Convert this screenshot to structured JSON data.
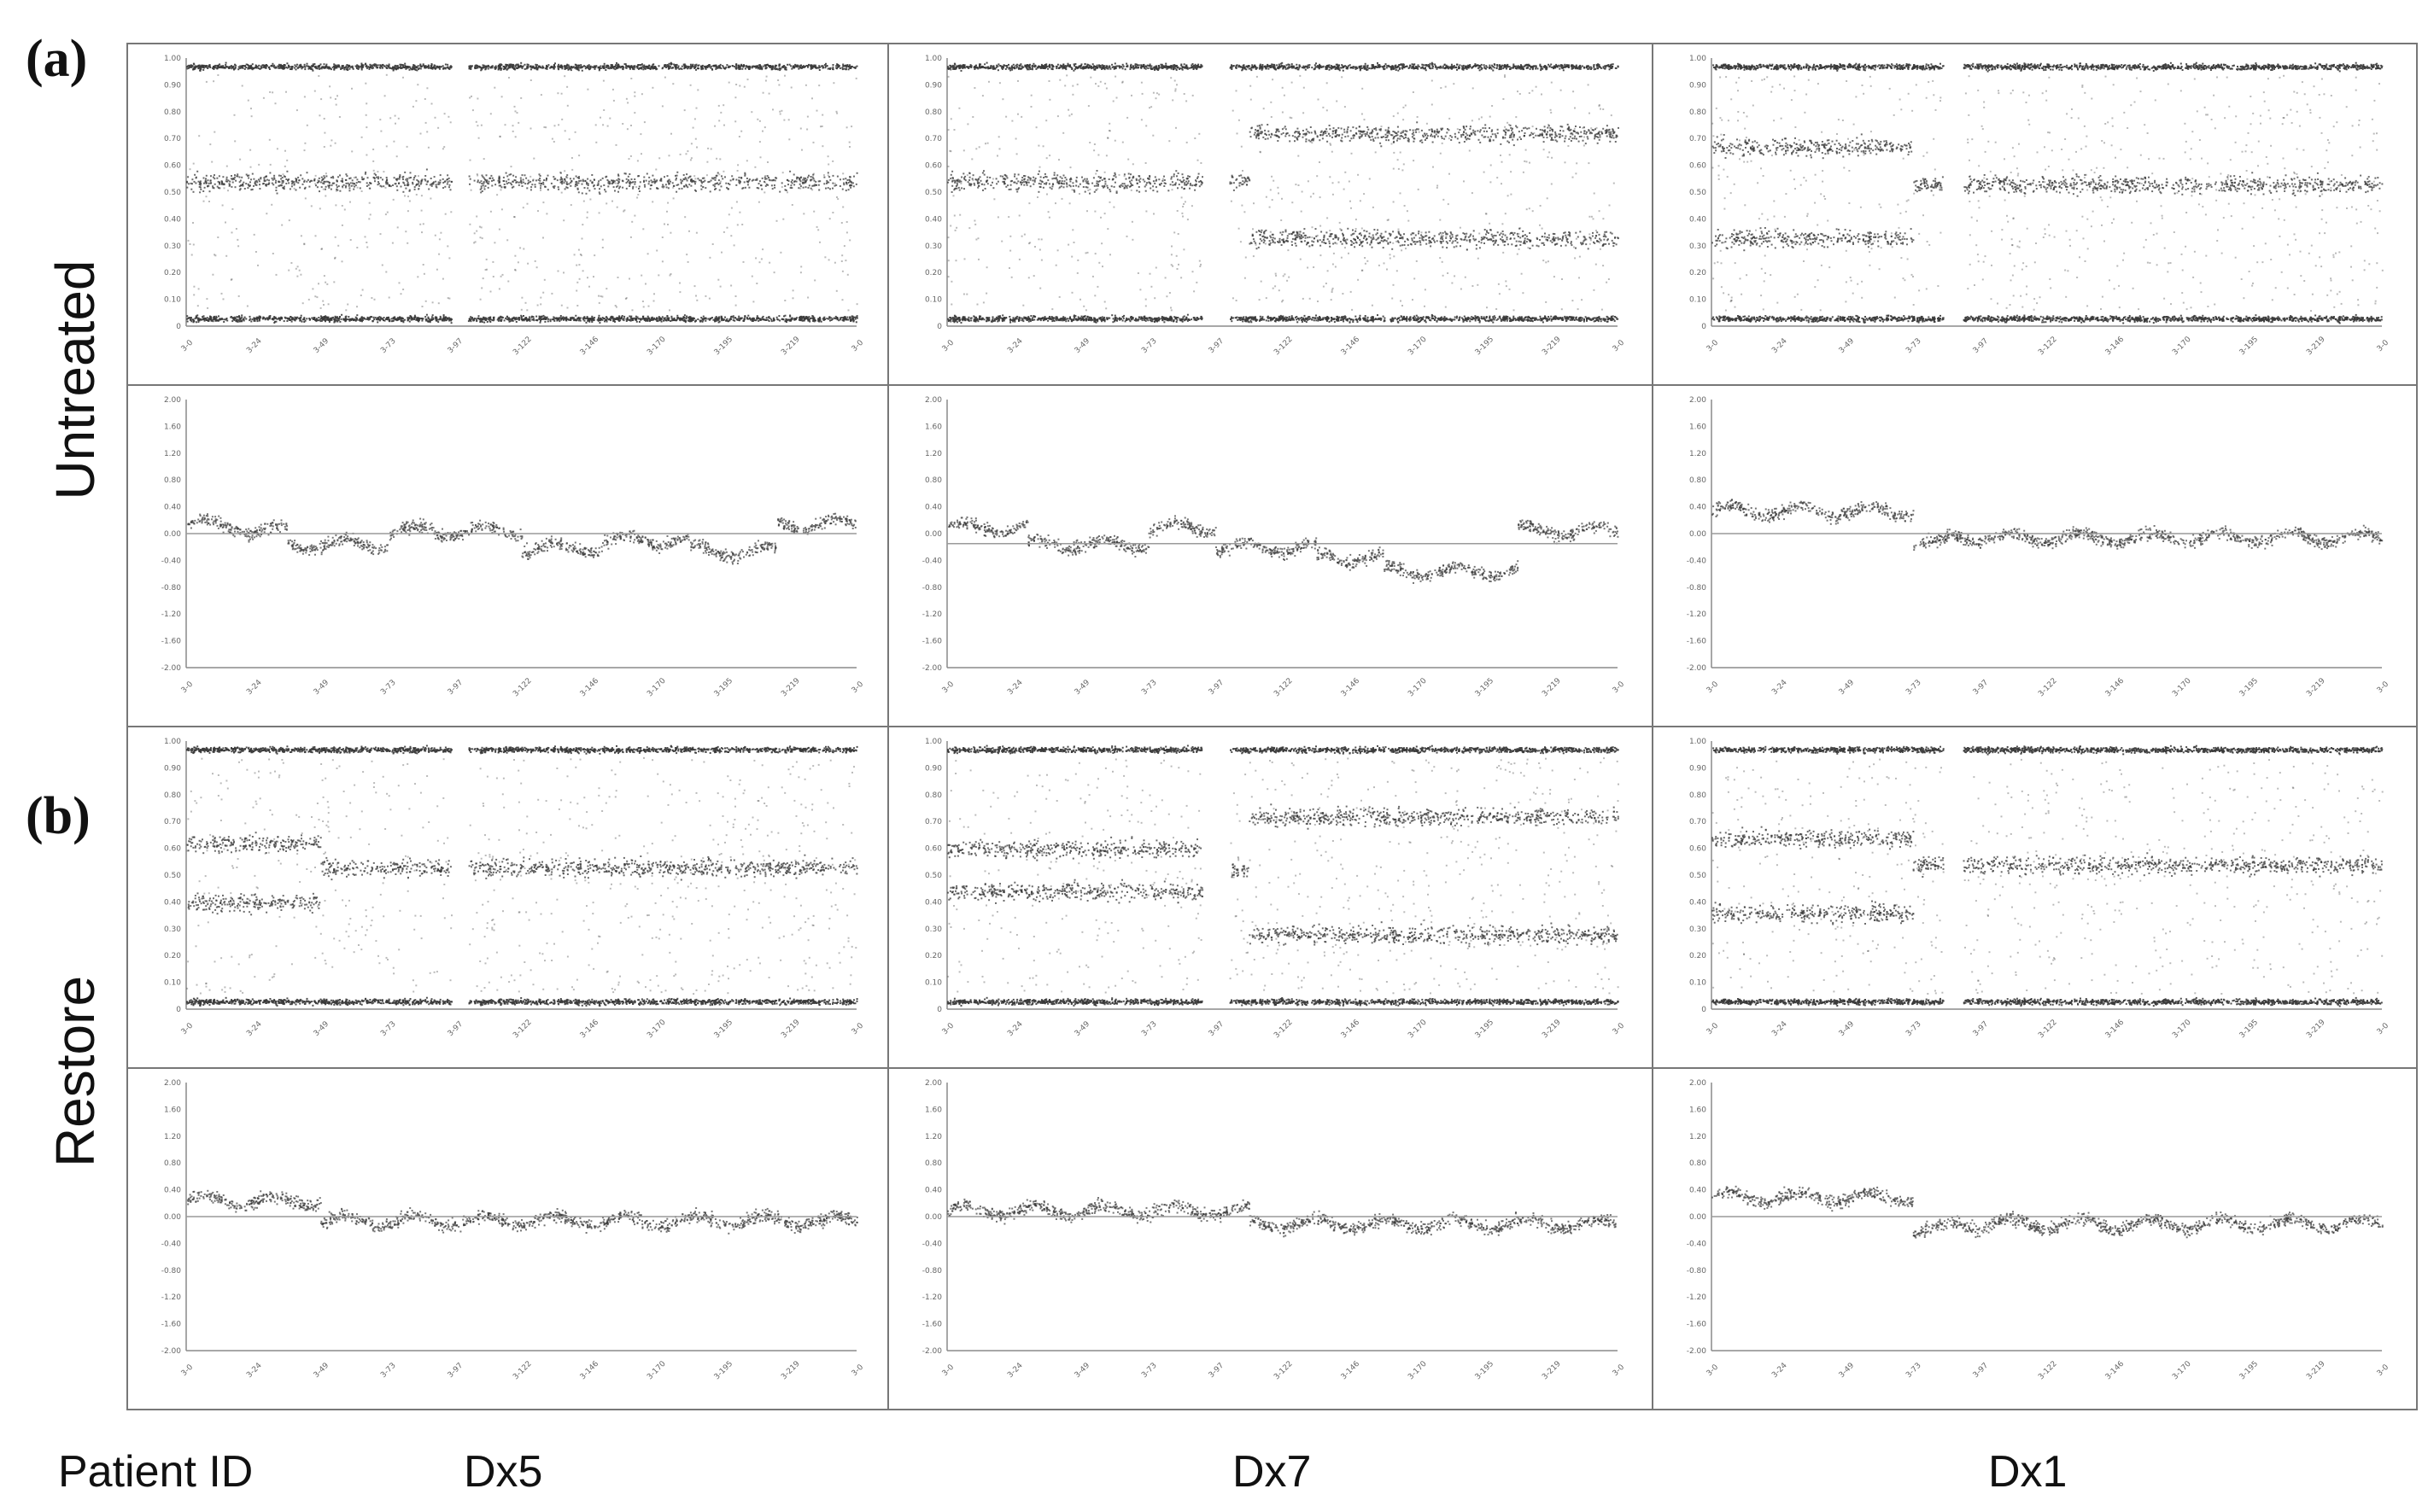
{
  "panel_labels": {
    "a": "(a)",
    "b": "(b)"
  },
  "row_labels": {
    "untreated": "Untreated",
    "restore": "Restore"
  },
  "bottom": {
    "patient_label": "Patient ID",
    "patients": [
      "Dx5",
      "Dx7",
      "Dx1"
    ]
  },
  "colors": {
    "dots": "#3a3a3a",
    "axis": "#8a8a8a",
    "border": "#777777",
    "baseline": "#9a9a9a"
  },
  "chart_data": [
    {
      "type": "scatter",
      "kind": "B-allele frequency",
      "condition": "Untreated",
      "patient": "Dx5",
      "ylim": [
        0,
        1
      ],
      "y_ticks": [
        "1.00",
        "0.90",
        "0.80",
        "0.70",
        "0.60",
        "0.50",
        "0.40",
        "0.30",
        "0.20",
        "0.10",
        "0"
      ],
      "x_ticks": [
        "3-0",
        "3-24",
        "3-49",
        "3-73",
        "3-97",
        "3-122",
        "3-146",
        "3-170",
        "3-195",
        "3-219",
        "3-0"
      ],
      "bands": [
        [
          0,
          1,
          0.03
        ],
        [
          0,
          1,
          0.97
        ],
        [
          0,
          1,
          0.54
        ]
      ],
      "gap": [
        0.395,
        0.42
      ]
    },
    {
      "type": "scatter",
      "kind": "B-allele frequency",
      "condition": "Untreated",
      "patient": "Dx7",
      "ylim": [
        0,
        1
      ],
      "y_ticks": [
        "1.00",
        "0.90",
        "0.80",
        "0.70",
        "0.60",
        "0.50",
        "0.40",
        "0.30",
        "0.20",
        "0.10",
        "0"
      ],
      "x_ticks": [
        "3-0",
        "3-24",
        "3-49",
        "3-73",
        "3-97",
        "3-122",
        "3-146",
        "3-170",
        "3-195",
        "3-219",
        "3-0"
      ],
      "bands": [
        [
          0,
          1,
          0.03
        ],
        [
          0,
          1,
          0.97
        ],
        [
          0,
          0.42,
          0.54
        ],
        [
          0.42,
          0.45,
          0.55
        ],
        [
          0.45,
          1,
          0.33
        ],
        [
          0.45,
          1,
          0.72
        ]
      ],
      "gap": [
        0.38,
        0.42
      ]
    },
    {
      "type": "scatter",
      "kind": "B-allele frequency",
      "condition": "Untreated",
      "patient": "Dx1",
      "ylim": [
        0,
        1
      ],
      "y_ticks": [
        "1.00",
        "0.90",
        "0.80",
        "0.70",
        "0.60",
        "0.50",
        "0.40",
        "0.30",
        "0.20",
        "0.10",
        "0"
      ],
      "x_ticks": [
        "3-0",
        "3-24",
        "3-49",
        "3-73",
        "3-97",
        "3-122",
        "3-146",
        "3-170",
        "3-195",
        "3-219",
        "3-0"
      ],
      "bands": [
        [
          0,
          1,
          0.03
        ],
        [
          0,
          1,
          0.97
        ],
        [
          0,
          0.3,
          0.33
        ],
        [
          0,
          0.3,
          0.67
        ],
        [
          0.3,
          1,
          0.53
        ]
      ],
      "gap": [
        0.345,
        0.375
      ]
    },
    {
      "type": "scatter",
      "kind": "Log R ratio",
      "condition": "Untreated",
      "patient": "Dx5",
      "ylim": [
        -2,
        2
      ],
      "y_ticks": [
        "2.00",
        "1.60",
        "1.20",
        "0.80",
        "0.40",
        "0.00",
        "-0.40",
        "-0.80",
        "-1.20",
        "-1.60",
        "-2.00"
      ],
      "x_ticks": [
        "3-0",
        "3-24",
        "3-49",
        "3-73",
        "3-97",
        "3-122",
        "3-146",
        "3-170",
        "3-195",
        "3-219",
        "3-0"
      ],
      "baseline": 0.0,
      "segments": [
        [
          0,
          0.08,
          0.15
        ],
        [
          0.08,
          0.15,
          0.05
        ],
        [
          0.15,
          0.3,
          -0.15
        ],
        [
          0.3,
          0.5,
          0.05
        ],
        [
          0.5,
          0.62,
          -0.2
        ],
        [
          0.62,
          0.75,
          -0.1
        ],
        [
          0.75,
          0.88,
          -0.25
        ],
        [
          0.88,
          1,
          0.15
        ]
      ]
    },
    {
      "type": "scatter",
      "kind": "Log R ratio",
      "condition": "Untreated",
      "patient": "Dx7",
      "ylim": [
        -2,
        2
      ],
      "y_ticks": [
        "2.00",
        "1.60",
        "1.20",
        "0.80",
        "0.40",
        "0.00",
        "-0.40",
        "-0.80",
        "-1.20",
        "-1.60",
        "-2.00"
      ],
      "x_ticks": [
        "3-0",
        "3-24",
        "3-49",
        "3-73",
        "3-97",
        "3-122",
        "3-146",
        "3-170",
        "3-195",
        "3-219",
        "3-0"
      ],
      "baseline": -0.15,
      "segments": [
        [
          0,
          0.12,
          0.1
        ],
        [
          0.12,
          0.3,
          -0.15
        ],
        [
          0.3,
          0.4,
          0.1
        ],
        [
          0.4,
          0.55,
          -0.2
        ],
        [
          0.55,
          0.65,
          -0.35
        ],
        [
          0.65,
          0.85,
          -0.55
        ],
        [
          0.85,
          1,
          0.05
        ]
      ]
    },
    {
      "type": "scatter",
      "kind": "Log R ratio",
      "condition": "Untreated",
      "patient": "Dx1",
      "ylim": [
        -2,
        2
      ],
      "y_ticks": [
        "2.00",
        "1.60",
        "1.20",
        "0.80",
        "0.40",
        "0.00",
        "-0.40",
        "-0.80",
        "-1.20",
        "-1.60",
        "-2.00"
      ],
      "x_ticks": [
        "3-0",
        "3-24",
        "3-49",
        "3-73",
        "3-97",
        "3-122",
        "3-146",
        "3-170",
        "3-195",
        "3-219",
        "3-0"
      ],
      "baseline": 0.0,
      "segments": [
        [
          0,
          0.3,
          0.35
        ],
        [
          0.3,
          0.35,
          -0.15
        ],
        [
          0.35,
          1,
          -0.05
        ]
      ]
    },
    {
      "type": "scatter",
      "kind": "B-allele frequency",
      "condition": "Restore",
      "patient": "Dx5",
      "ylim": [
        0,
        1
      ],
      "y_ticks": [
        "1.00",
        "0.90",
        "0.80",
        "0.70",
        "0.60",
        "0.50",
        "0.40",
        "0.30",
        "0.20",
        "0.10",
        "0"
      ],
      "x_ticks": [
        "3-0",
        "3-24",
        "3-49",
        "3-73",
        "3-97",
        "3-122",
        "3-146",
        "3-170",
        "3-195",
        "3-219",
        "3-0"
      ],
      "bands": [
        [
          0,
          1,
          0.03
        ],
        [
          0,
          1,
          0.97
        ],
        [
          0,
          0.2,
          0.4
        ],
        [
          0,
          0.2,
          0.62
        ],
        [
          0.2,
          1,
          0.53
        ]
      ],
      "gap": [
        0.395,
        0.42
      ]
    },
    {
      "type": "scatter",
      "kind": "B-allele frequency",
      "condition": "Restore",
      "patient": "Dx7",
      "ylim": [
        0,
        1
      ],
      "y_ticks": [
        "1.00",
        "0.90",
        "0.80",
        "0.70",
        "0.60",
        "0.50",
        "0.40",
        "0.30",
        "0.20",
        "0.10",
        "0"
      ],
      "x_ticks": [
        "3-0",
        "3-24",
        "3-49",
        "3-73",
        "3-97",
        "3-122",
        "3-146",
        "3-170",
        "3-195",
        "3-219",
        "3-0"
      ],
      "bands": [
        [
          0,
          1,
          0.03
        ],
        [
          0,
          1,
          0.97
        ],
        [
          0,
          0.38,
          0.44
        ],
        [
          0,
          0.38,
          0.6
        ],
        [
          0.42,
          0.45,
          0.52
        ],
        [
          0.45,
          1,
          0.28
        ],
        [
          0.45,
          1,
          0.72
        ]
      ],
      "gap": [
        0.38,
        0.42
      ]
    },
    {
      "type": "scatter",
      "kind": "B-allele frequency",
      "condition": "Restore",
      "patient": "Dx1",
      "ylim": [
        0,
        1
      ],
      "y_ticks": [
        "1.00",
        "0.90",
        "0.80",
        "0.70",
        "0.60",
        "0.50",
        "0.40",
        "0.30",
        "0.20",
        "0.10",
        "0"
      ],
      "x_ticks": [
        "3-0",
        "3-24",
        "3-49",
        "3-73",
        "3-97",
        "3-122",
        "3-146",
        "3-170",
        "3-195",
        "3-219",
        "3-0"
      ],
      "bands": [
        [
          0,
          1,
          0.03
        ],
        [
          0,
          1,
          0.97
        ],
        [
          0,
          0.3,
          0.36
        ],
        [
          0,
          0.3,
          0.64
        ],
        [
          0.3,
          1,
          0.54
        ]
      ],
      "gap": [
        0.345,
        0.375
      ]
    },
    {
      "type": "scatter",
      "kind": "Log R ratio",
      "condition": "Restore",
      "patient": "Dx5",
      "ylim": [
        -2,
        2
      ],
      "y_ticks": [
        "2.00",
        "1.60",
        "1.20",
        "0.80",
        "0.40",
        "0.00",
        "-0.40",
        "-0.80",
        "-1.20",
        "-1.60",
        "-2.00"
      ],
      "x_ticks": [
        "3-0",
        "3-24",
        "3-49",
        "3-73",
        "3-97",
        "3-122",
        "3-146",
        "3-170",
        "3-195",
        "3-219",
        "3-0"
      ],
      "baseline": 0.0,
      "segments": [
        [
          0,
          0.2,
          0.25
        ],
        [
          0.2,
          1,
          -0.05
        ]
      ]
    },
    {
      "type": "scatter",
      "kind": "Log R ratio",
      "condition": "Restore",
      "patient": "Dx7",
      "ylim": [
        -2,
        2
      ],
      "y_ticks": [
        "2.00",
        "1.60",
        "1.20",
        "0.80",
        "0.40",
        "0.00",
        "-0.40",
        "-0.80",
        "-1.20",
        "-1.60",
        "-2.00"
      ],
      "x_ticks": [
        "3-0",
        "3-24",
        "3-49",
        "3-73",
        "3-97",
        "3-122",
        "3-146",
        "3-170",
        "3-195",
        "3-219",
        "3-0"
      ],
      "baseline": 0.0,
      "segments": [
        [
          0,
          0.45,
          0.1
        ],
        [
          0.45,
          1,
          -0.1
        ]
      ]
    },
    {
      "type": "scatter",
      "kind": "Log R ratio",
      "condition": "Restore",
      "patient": "Dx1",
      "ylim": [
        -2,
        2
      ],
      "y_ticks": [
        "2.00",
        "1.60",
        "1.20",
        "0.80",
        "0.40",
        "0.00",
        "-0.40",
        "-0.80",
        "-1.20",
        "-1.60",
        "-2.00"
      ],
      "x_ticks": [
        "3-0",
        "3-24",
        "3-49",
        "3-73",
        "3-97",
        "3-122",
        "3-146",
        "3-170",
        "3-195",
        "3-219",
        "3-0"
      ],
      "baseline": 0.0,
      "segments": [
        [
          0,
          0.3,
          0.3
        ],
        [
          0.3,
          0.35,
          -0.2
        ],
        [
          0.35,
          1,
          -0.1
        ]
      ]
    }
  ]
}
